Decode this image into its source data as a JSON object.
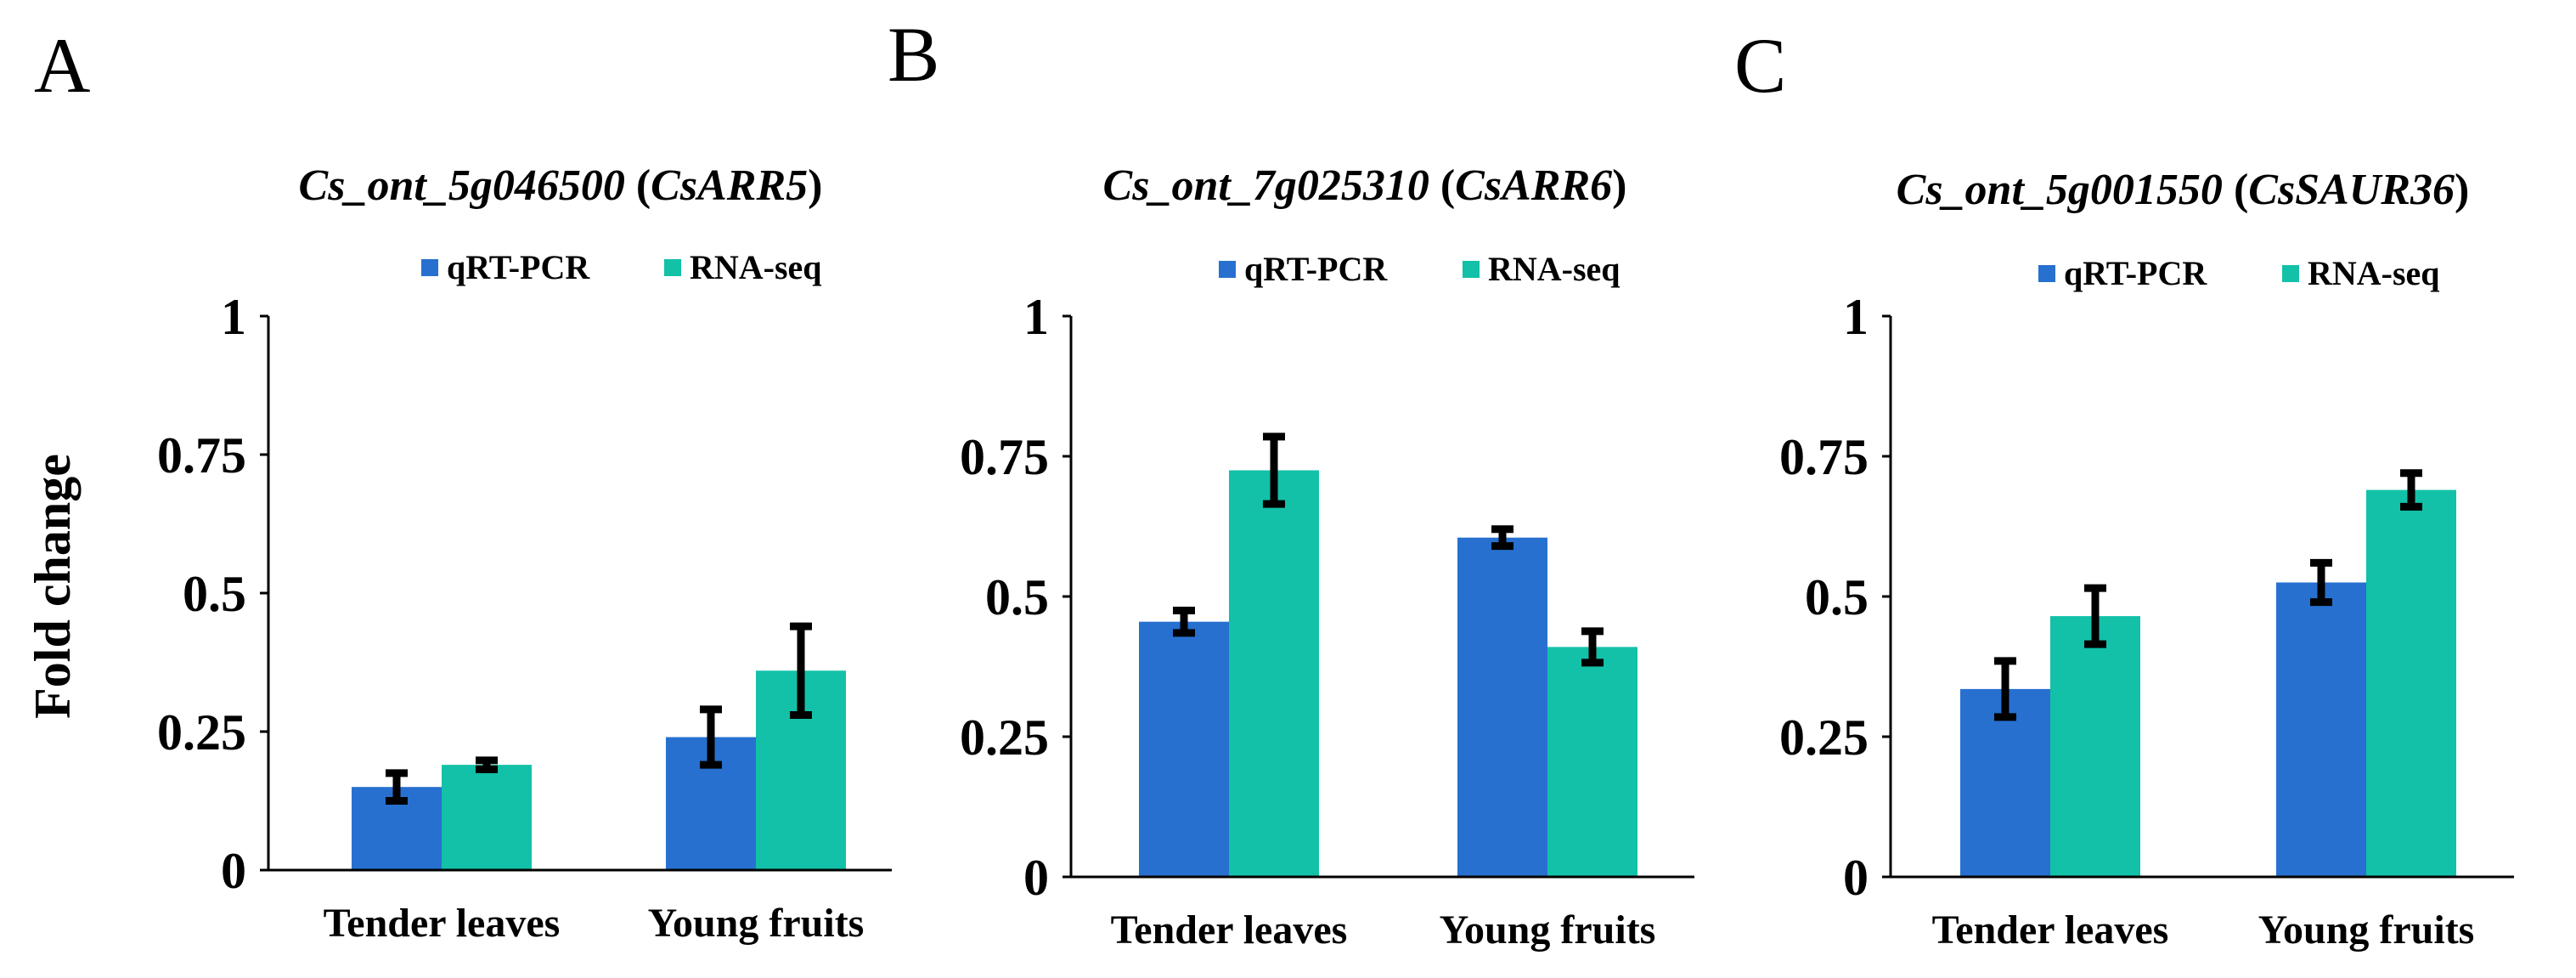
{
  "figure": {
    "ylabel": "Fold change",
    "legend": {
      "series_1": "qRT-PCR",
      "series_2": "RNA-seq"
    },
    "colors": {
      "qrt_pcr": "#2770D0",
      "rna_seq": "#12C1A8",
      "axis": "#000000",
      "errorbar": "#000000"
    }
  },
  "chart_data": [
    {
      "type": "bar",
      "panel": "A",
      "title_gene": "Cs_ont_5g046500",
      "title_open": " (",
      "title_symbol": "CsARR5",
      "title_close": ")",
      "categories": [
        "Tender leaves",
        "Young fruits"
      ],
      "series": [
        {
          "name": "qRT-PCR",
          "values": [
            0.15,
            0.24
          ],
          "errors": [
            0.025,
            0.05
          ]
        },
        {
          "name": "RNA-seq",
          "values": [
            0.19,
            0.36
          ],
          "errors": [
            0.008,
            0.08
          ]
        }
      ],
      "ylim": [
        0,
        1
      ],
      "yticks": [
        0,
        0.25,
        0.5,
        0.75,
        1
      ],
      "ytick_labels": [
        "0",
        "0.25",
        "0.5",
        "0.75",
        "1"
      ],
      "ylabel": "Fold change",
      "legend": "top-right"
    },
    {
      "type": "bar",
      "panel": "B",
      "title_gene": "Cs_ont_7g025310",
      "title_open": " (",
      "title_symbol": "CsARR6",
      "title_close": ")",
      "categories": [
        "Tender leaves",
        "Young fruits"
      ],
      "series": [
        {
          "name": "qRT-PCR",
          "values": [
            0.455,
            0.605
          ],
          "errors": [
            0.02,
            0.015
          ]
        },
        {
          "name": "RNA-seq",
          "values": [
            0.725,
            0.41
          ],
          "errors": [
            0.06,
            0.028
          ]
        }
      ],
      "ylim": [
        0,
        1
      ],
      "yticks": [
        0,
        0.25,
        0.5,
        0.75,
        1
      ],
      "ytick_labels": [
        "0",
        "0.25",
        "0.5",
        "0.75",
        "1"
      ],
      "ylabel": "",
      "legend": "top-right"
    },
    {
      "type": "bar",
      "panel": "C",
      "title_gene": "Cs_ont_5g001550",
      "title_open": " (",
      "title_symbol": "CsSAUR36",
      "title_close": ")",
      "categories": [
        "Tender leaves",
        "Young fruits"
      ],
      "series": [
        {
          "name": "qRT-PCR",
          "values": [
            0.335,
            0.525
          ],
          "errors": [
            0.05,
            0.035
          ]
        },
        {
          "name": "RNA-seq",
          "values": [
            0.465,
            0.69
          ],
          "errors": [
            0.05,
            0.03
          ]
        }
      ],
      "ylim": [
        0,
        1
      ],
      "yticks": [
        0,
        0.25,
        0.5,
        0.75,
        1
      ],
      "ytick_labels": [
        "0",
        "0.25",
        "0.5",
        "0.75",
        "1"
      ],
      "ylabel": "",
      "legend": "top-right"
    }
  ]
}
